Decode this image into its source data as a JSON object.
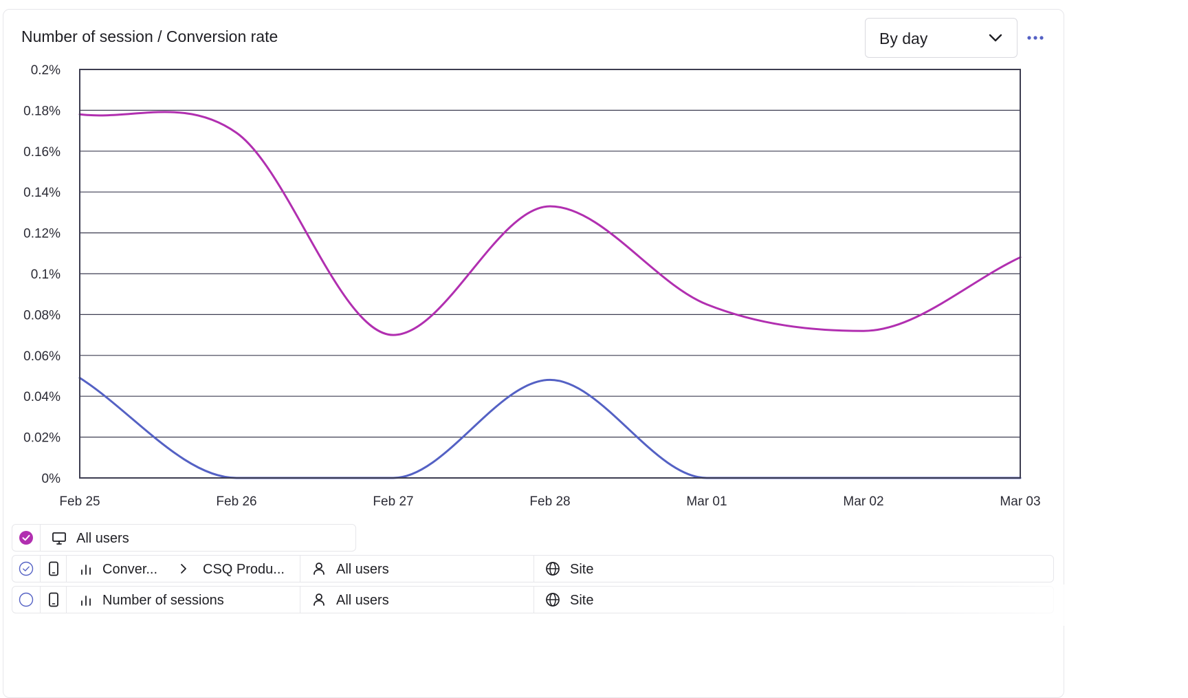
{
  "header": {
    "title": "Number of session / Conversion rate",
    "period_value": "By day"
  },
  "chart_data": {
    "type": "line",
    "x": [
      "Feb 25",
      "Feb 26",
      "Feb 27",
      "Feb 28",
      "Mar 01",
      "Mar 02",
      "Mar 03"
    ],
    "y_ticks": [
      "0%",
      "0.02%",
      "0.04%",
      "0.06%",
      "0.08%",
      "0.1%",
      "0.12%",
      "0.14%",
      "0.16%",
      "0.18%",
      "0.2%"
    ],
    "ylim": [
      0,
      0.2
    ],
    "grid": true,
    "series": [
      {
        "color": "#b12fb0",
        "values": [
          0.178,
          0.169,
          0.07,
          0.133,
          0.085,
          0.072,
          0.108
        ]
      },
      {
        "color": "#5461c4",
        "values": [
          0.049,
          0.0,
          0.0,
          0.048,
          0.0,
          0.0,
          0.0
        ]
      }
    ]
  },
  "legend": {
    "group": {
      "label": "All users",
      "check_color": "#b12fb0"
    },
    "rows": [
      {
        "metric": "Conver...",
        "target": "CSQ Produ...",
        "segment": "All users",
        "scope": "Site",
        "check_color": "#5461c4"
      },
      {
        "metric": "Number of sessions",
        "segment": "All users",
        "scope": "Site",
        "check_color": "#5461c4"
      }
    ]
  }
}
